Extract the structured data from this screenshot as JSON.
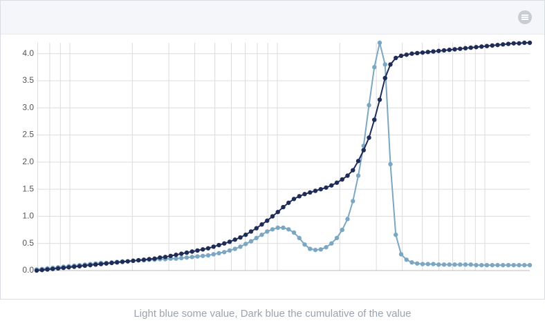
{
  "chart_data": {
    "type": "line",
    "caption": "Light blue some value, Dark blue the cumulative of the value",
    "ylim": [
      0,
      4.2
    ],
    "yticks": [
      {
        "value": 0,
        "label": "0.0"
      },
      0.5,
      {
        "value": 1,
        "label": "1.0"
      },
      1.5,
      {
        "value": 2,
        "label": "2.0"
      },
      2.5,
      {
        "value": 3,
        "label": "3.0"
      },
      3.5,
      {
        "value": 4,
        "label": "4.0"
      }
    ],
    "grid": true,
    "series": [
      {
        "name": "Light blue",
        "color": "#7ba7c3",
        "values": [
          0.02,
          0.03,
          0.04,
          0.05,
          0.06,
          0.07,
          0.08,
          0.09,
          0.1,
          0.11,
          0.12,
          0.13,
          0.14,
          0.14,
          0.15,
          0.16,
          0.17,
          0.17,
          0.18,
          0.19,
          0.19,
          0.2,
          0.2,
          0.21,
          0.21,
          0.22,
          0.22,
          0.23,
          0.24,
          0.25,
          0.26,
          0.27,
          0.28,
          0.3,
          0.32,
          0.34,
          0.37,
          0.4,
          0.44,
          0.49,
          0.54,
          0.6,
          0.66,
          0.72,
          0.76,
          0.79,
          0.79,
          0.76,
          0.7,
          0.6,
          0.48,
          0.4,
          0.38,
          0.39,
          0.43,
          0.5,
          0.6,
          0.75,
          0.95,
          1.28,
          1.75,
          2.3,
          3.05,
          3.75,
          4.2,
          3.8,
          1.96,
          0.66,
          0.3,
          0.2,
          0.15,
          0.13,
          0.12,
          0.12,
          0.12,
          0.11,
          0.11,
          0.11,
          0.11,
          0.11,
          0.11,
          0.11,
          0.1,
          0.1,
          0.1,
          0.1,
          0.1,
          0.1,
          0.1,
          0.1,
          0.1,
          0.1,
          0.1
        ]
      },
      {
        "name": "Dark blue",
        "color": "#1f2c58",
        "values": [
          0,
          0.01,
          0.02,
          0.03,
          0.04,
          0.05,
          0.06,
          0.07,
          0.08,
          0.09,
          0.1,
          0.11,
          0.12,
          0.13,
          0.14,
          0.15,
          0.16,
          0.17,
          0.18,
          0.19,
          0.2,
          0.21,
          0.22,
          0.24,
          0.25,
          0.27,
          0.29,
          0.31,
          0.33,
          0.35,
          0.37,
          0.39,
          0.41,
          0.44,
          0.47,
          0.5,
          0.53,
          0.57,
          0.61,
          0.66,
          0.72,
          0.78,
          0.85,
          0.92,
          1.0,
          1.08,
          1.17,
          1.25,
          1.32,
          1.37,
          1.41,
          1.44,
          1.47,
          1.5,
          1.53,
          1.57,
          1.62,
          1.68,
          1.75,
          1.85,
          2.02,
          2.22,
          2.45,
          2.78,
          3.15,
          3.55,
          3.8,
          3.92,
          3.96,
          3.98,
          4.0,
          4.01,
          4.02,
          4.03,
          4.04,
          4.05,
          4.06,
          4.07,
          4.08,
          4.09,
          4.1,
          4.11,
          4.12,
          4.13,
          4.14,
          4.15,
          4.16,
          4.17,
          4.18,
          4.19,
          4.19,
          4.2,
          4.2
        ]
      }
    ]
  }
}
